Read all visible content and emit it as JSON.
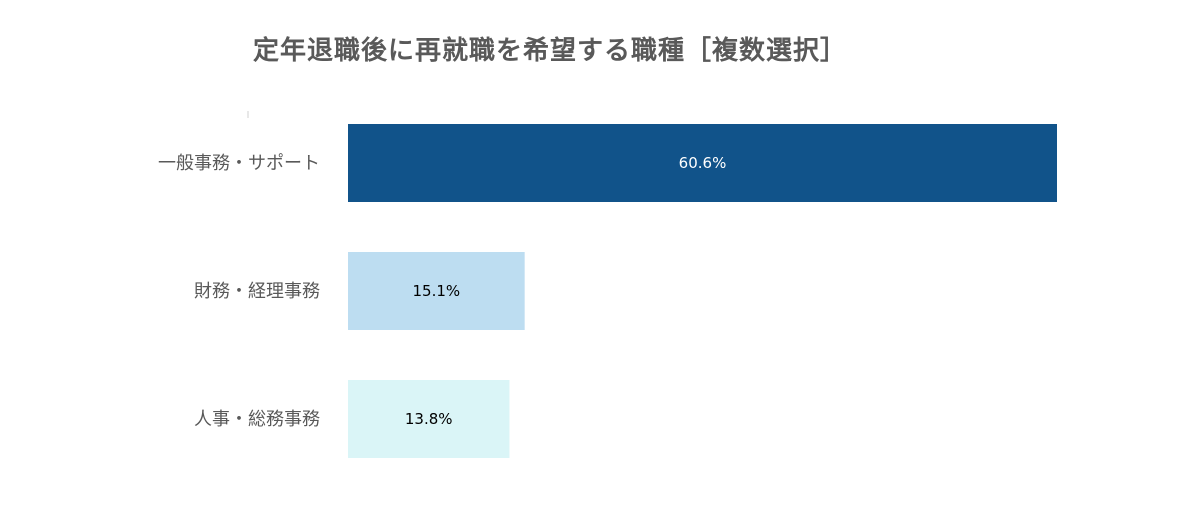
{
  "title": "定年退職後に再就職を希望する職種［複数選択］",
  "chart_data": {
    "type": "bar",
    "orientation": "horizontal",
    "title": "定年退職後に再就職を希望する職種［複数選択］",
    "categories": [
      "一般事務・サポート",
      "財務・経理事務",
      "人事・総務事務"
    ],
    "values": [
      60.6,
      15.1,
      13.8
    ],
    "value_labels": [
      "60.6%",
      "15.1%",
      "13.8%"
    ],
    "colors": [
      "#11538A",
      "#BDDDF1",
      "#DAF5F7"
    ],
    "label_colors": [
      "#FFFFFF",
      "#000000",
      "#000000"
    ],
    "xlim": [
      0,
      70
    ],
    "grid": false,
    "legend": "none"
  }
}
